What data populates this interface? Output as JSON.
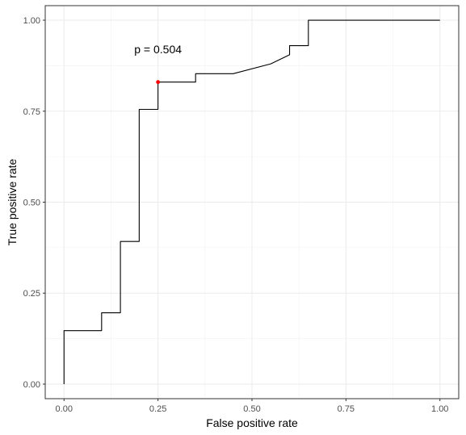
{
  "chart_data": {
    "type": "line",
    "title": "",
    "xlabel": "False positive rate",
    "ylabel": "True positive rate",
    "xlim": [
      -0.05,
      1.05
    ],
    "ylim": [
      -0.04,
      1.04
    ],
    "grid": true,
    "legend": "none",
    "x_ticks": [
      0.0,
      0.25,
      0.5,
      0.75,
      1.0
    ],
    "x_tick_labels": [
      "0.00",
      "0.25",
      "0.50",
      "0.75",
      "1.00"
    ],
    "y_ticks": [
      0.0,
      0.25,
      0.5,
      0.75,
      1.0
    ],
    "y_tick_labels": [
      "0.00",
      "0.25",
      "0.50",
      "0.75",
      "1.00"
    ],
    "series": [
      {
        "color": "#000000",
        "x": [
          0.0,
          0.0,
          0.1,
          0.1,
          0.15,
          0.15,
          0.2,
          0.2,
          0.25,
          0.25,
          0.35,
          0.35,
          0.45,
          0.55,
          0.6,
          0.6,
          0.65,
          0.65,
          1.0
        ],
        "y": [
          0.0,
          0.147,
          0.147,
          0.196,
          0.196,
          0.392,
          0.392,
          0.755,
          0.755,
          0.83,
          0.83,
          0.853,
          0.853,
          0.88,
          0.905,
          0.93,
          0.93,
          1.0,
          1.0
        ]
      }
    ],
    "highlight_point": {
      "x": 0.25,
      "y": 0.83,
      "color": "#ff0000"
    },
    "annotation": {
      "text": "p = 0.504",
      "x": 0.25,
      "y": 0.92
    }
  }
}
